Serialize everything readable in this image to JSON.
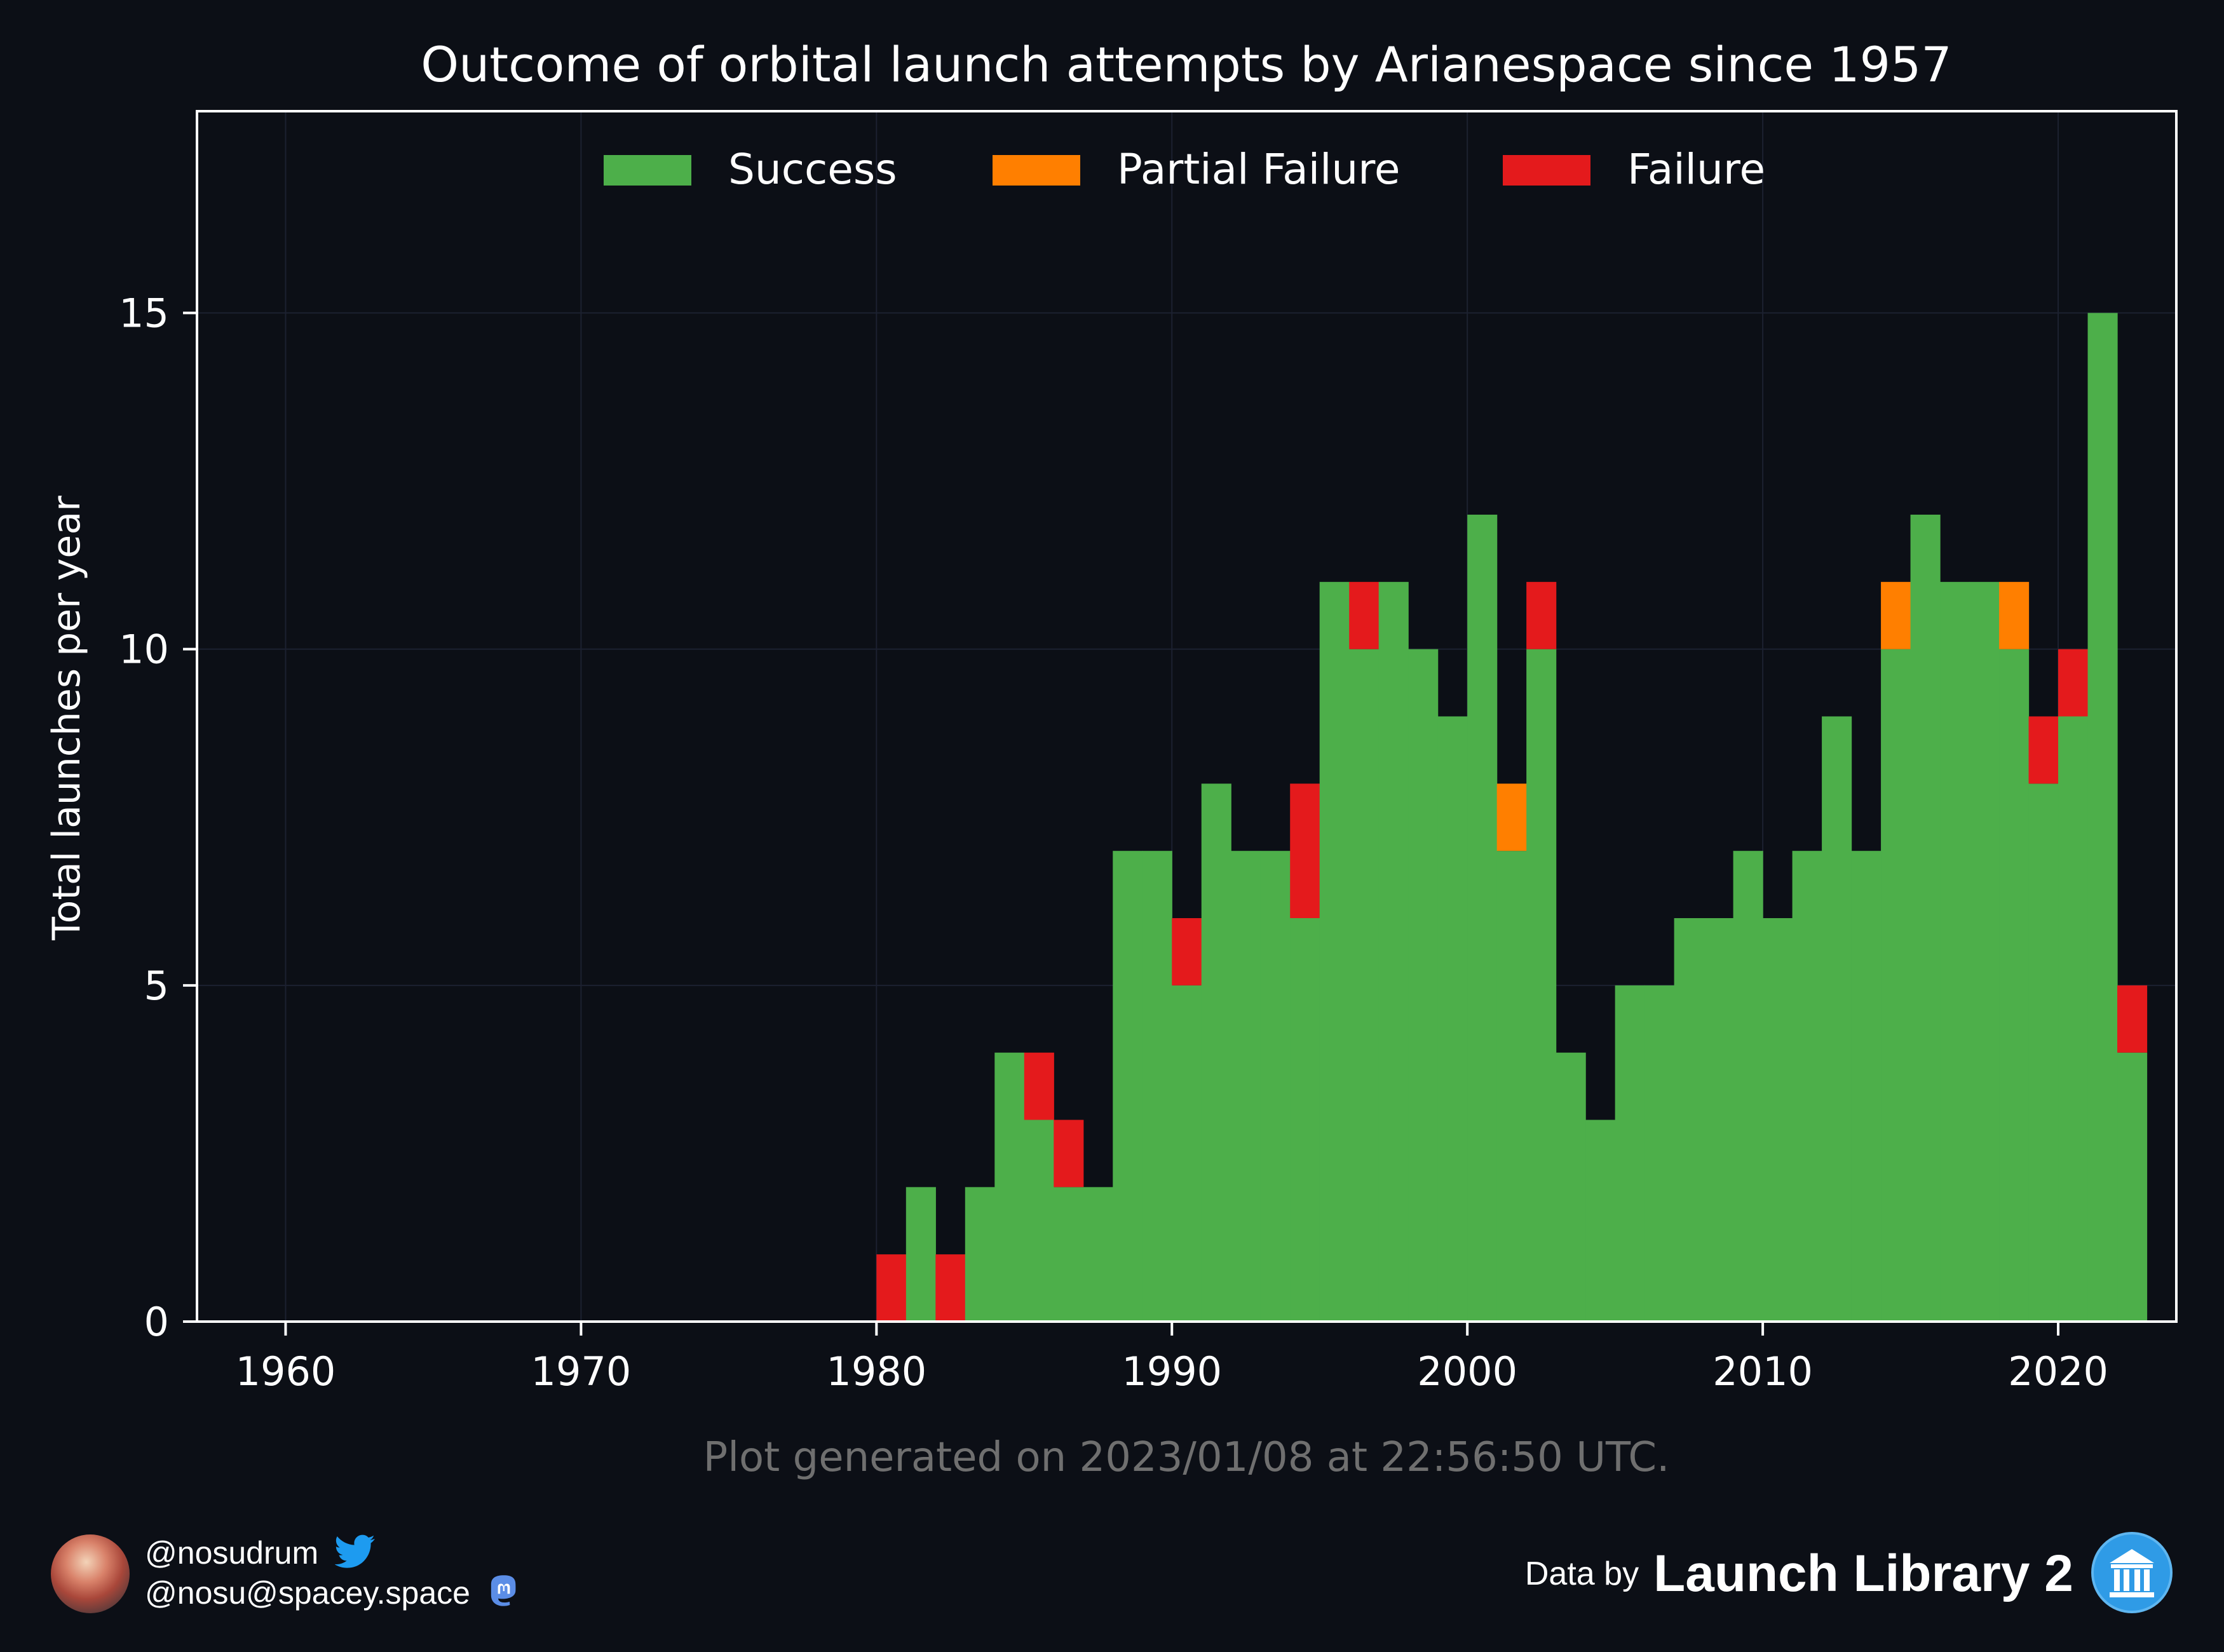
{
  "chart_data": {
    "type": "bar",
    "stacked": true,
    "title": "Outcome of orbital launch attempts by Arianespace since 1957",
    "ylabel": "Total launches per year",
    "xlim": [
      1957,
      2024
    ],
    "ylim": [
      0,
      18
    ],
    "xticks": [
      "1960",
      "1970",
      "1980",
      "1990",
      "2000",
      "2010",
      "2020"
    ],
    "yticks": [
      "0",
      "5",
      "10",
      "15"
    ],
    "grid": true,
    "legend_position": "top-center",
    "x": [
      1980,
      1981,
      1982,
      1983,
      1984,
      1985,
      1986,
      1987,
      1988,
      1989,
      1990,
      1991,
      1992,
      1993,
      1994,
      1995,
      1996,
      1997,
      1998,
      1999,
      2000,
      2001,
      2002,
      2003,
      2004,
      2005,
      2006,
      2007,
      2008,
      2009,
      2010,
      2011,
      2012,
      2013,
      2014,
      2015,
      2016,
      2017,
      2018,
      2019,
      2020,
      2021,
      2022
    ],
    "series": [
      {
        "name": "Success",
        "color": "#4daf4a",
        "values": [
          0,
          2,
          0,
          2,
          4,
          3,
          2,
          2,
          7,
          7,
          5,
          8,
          7,
          7,
          6,
          11,
          10,
          11,
          10,
          9,
          12,
          7,
          10,
          4,
          3,
          5,
          5,
          6,
          6,
          7,
          6,
          7,
          9,
          7,
          10,
          12,
          11,
          11,
          10,
          8,
          9,
          15,
          4
        ]
      },
      {
        "name": "Partial Failure",
        "color": "#ff7f00",
        "values": [
          0,
          0,
          0,
          0,
          0,
          0,
          0,
          0,
          0,
          0,
          0,
          0,
          0,
          0,
          0,
          0,
          0,
          0,
          0,
          0,
          0,
          1,
          0,
          0,
          0,
          0,
          0,
          0,
          0,
          0,
          0,
          0,
          0,
          0,
          1,
          0,
          0,
          0,
          1,
          0,
          0,
          0,
          0
        ]
      },
      {
        "name": "Failure",
        "color": "#e41a1c",
        "values": [
          1,
          0,
          1,
          0,
          0,
          1,
          1,
          0,
          0,
          0,
          1,
          0,
          0,
          0,
          2,
          0,
          1,
          0,
          0,
          0,
          0,
          0,
          1,
          0,
          0,
          0,
          0,
          0,
          0,
          0,
          0,
          0,
          0,
          0,
          0,
          0,
          0,
          0,
          0,
          1,
          1,
          0,
          1
        ]
      }
    ],
    "annotation": "Plot generated on 2023/01/08 at 22:56:50 UTC."
  },
  "footer": {
    "twitter_handle": "@nosudrum",
    "mastodon_handle": "@nosu@spacey.space",
    "data_by": "Data by",
    "source_name": "Launch Library 2"
  },
  "colors": {
    "background": "#0c0f16",
    "twitter": "#1d9bf0",
    "mastodon": "#5b8de6",
    "ll2": "#2f9be6"
  }
}
